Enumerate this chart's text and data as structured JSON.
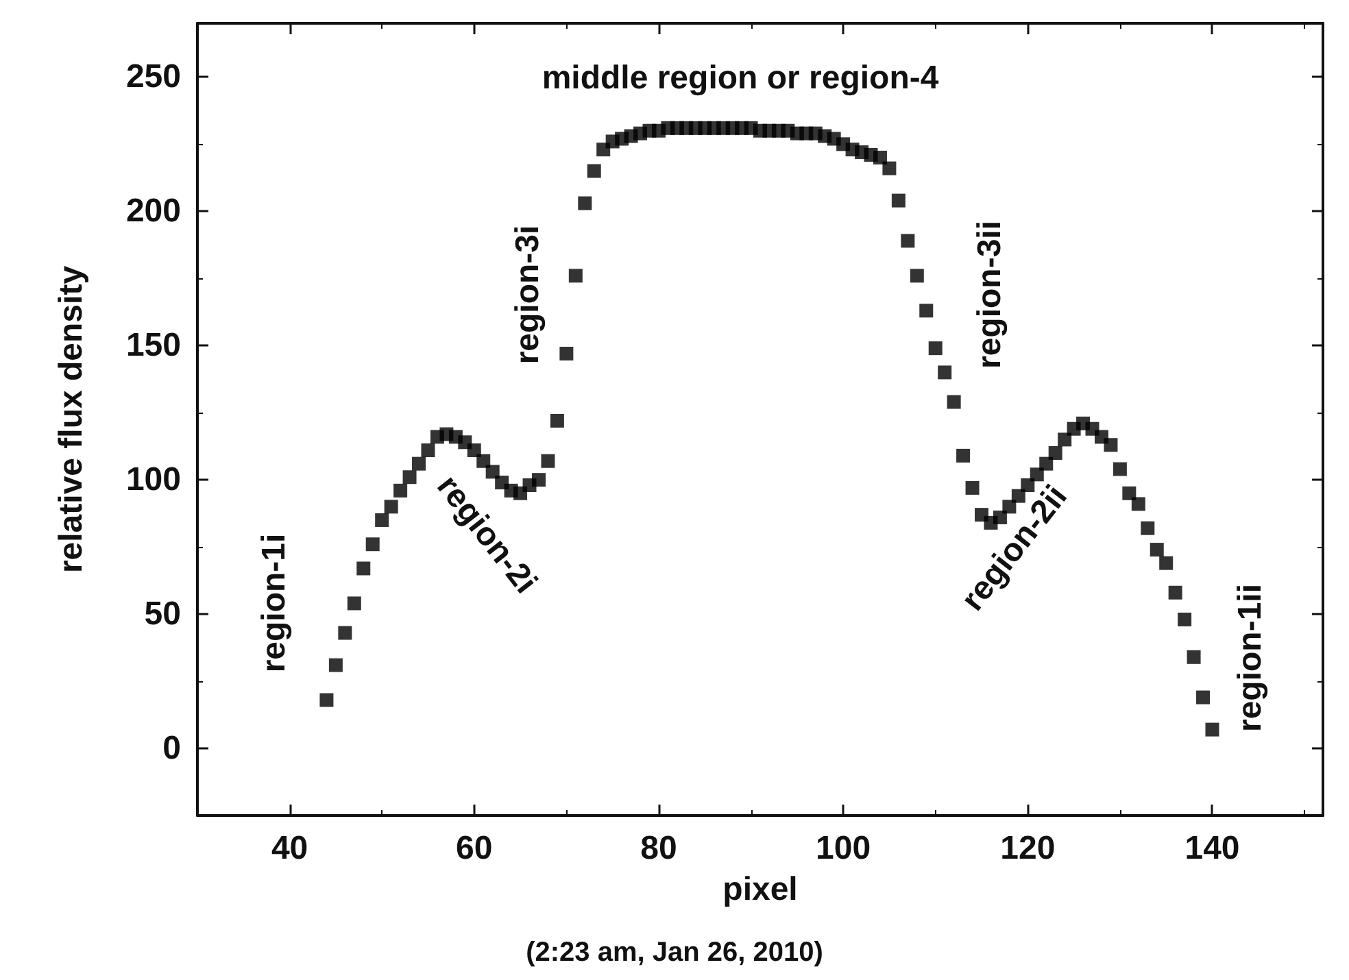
{
  "chart_data": {
    "type": "scatter",
    "xlabel": "pixel",
    "ylabel": "relative flux density",
    "x": [
      44,
      45,
      46,
      47,
      48,
      49,
      50,
      51,
      52,
      53,
      54,
      55,
      56,
      57,
      58,
      59,
      60,
      61,
      62,
      63,
      64,
      65,
      66,
      67,
      68,
      69,
      70,
      71,
      72,
      73,
      74,
      75,
      76,
      77,
      78,
      79,
      80,
      81,
      82,
      83,
      84,
      85,
      86,
      87,
      88,
      89,
      90,
      91,
      92,
      93,
      94,
      95,
      96,
      97,
      98,
      99,
      100,
      101,
      102,
      103,
      104,
      105,
      106,
      107,
      108,
      109,
      110,
      111,
      112,
      113,
      114,
      115,
      116,
      117,
      118,
      119,
      120,
      121,
      122,
      123,
      124,
      125,
      126,
      127,
      128,
      129,
      130,
      131,
      132,
      133,
      134,
      135,
      136,
      137,
      138,
      139,
      140
    ],
    "series": [
      {
        "color": "#000000",
        "values": [
          18,
          31,
          43,
          54,
          67,
          76,
          85,
          90,
          96,
          101,
          106,
          111,
          116,
          117,
          116,
          114,
          111,
          107,
          103,
          99,
          96,
          95,
          98,
          100,
          107,
          122,
          147,
          176,
          203,
          215,
          223,
          226,
          227,
          228,
          229,
          230,
          230,
          231,
          231,
          231,
          231,
          231,
          231,
          231,
          231,
          231,
          231,
          230,
          230,
          230,
          230,
          229,
          229,
          229,
          228,
          227,
          225,
          223,
          222,
          221,
          220,
          216,
          204,
          189,
          176,
          163,
          149,
          140,
          129,
          109,
          97,
          87,
          84,
          86,
          90,
          94,
          98,
          102,
          106,
          110,
          115,
          119,
          121,
          119,
          116,
          113,
          104,
          95,
          91,
          82,
          74,
          69,
          58,
          48,
          34,
          19,
          7
        ]
      }
    ],
    "xlim": [
      30,
      152
    ],
    "ylim": [
      -25,
      270
    ],
    "xticks": [
      40,
      60,
      80,
      100,
      120,
      140
    ],
    "yticks": [
      0,
      50,
      100,
      150,
      200,
      250
    ],
    "marker": "square",
    "grid": false,
    "annotations": [
      "middle region or region-4",
      "region-3i",
      "region-1i",
      "region-2i",
      "region-3ii",
      "region-2ii",
      "region-1ii",
      "(2:23 am, Jan 26, 2010)"
    ]
  }
}
